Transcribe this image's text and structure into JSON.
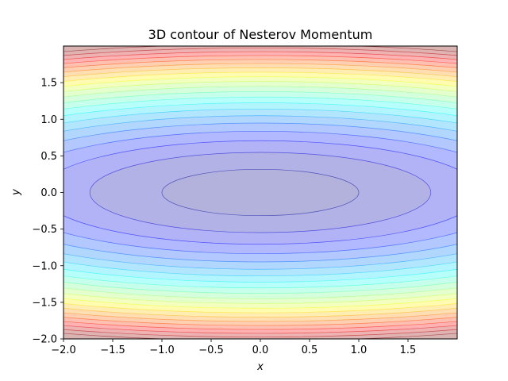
{
  "chart_data": {
    "type": "contour",
    "title": "3D contour of Nesterov Momentum",
    "xlabel": "x",
    "ylabel": "y",
    "xlim": [
      -2.0,
      2.0
    ],
    "ylim": [
      -2.0,
      2.0
    ],
    "x_ticks": [
      -2.0,
      -1.5,
      -1.0,
      -0.5,
      0.0,
      0.5,
      1.0,
      1.5
    ],
    "y_ticks": [
      -2.0,
      -1.5,
      -1.0,
      -0.5,
      0.0,
      0.5,
      1.0,
      1.5
    ],
    "x_tick_labels": [
      "−2.0",
      "−1.5",
      "−1.0",
      "−0.5",
      "0.0",
      "0.5",
      "1.0",
      "1.5"
    ],
    "y_tick_labels": [
      "−2.0",
      "−1.5",
      "−1.0",
      "−0.5",
      "0.0",
      "0.5",
      "1.0",
      "1.5"
    ],
    "function": "f(x, y) = x^2 / 10 + y^2 (approx.)",
    "y_scale_factor": 0.1,
    "levels": [
      0,
      0.01,
      0.03,
      0.05,
      0.07,
      0.09,
      0.11,
      0.13,
      0.15,
      0.17,
      0.19,
      0.21,
      0.23,
      0.25,
      0.27,
      0.29,
      0.31,
      0.33,
      0.35,
      0.37,
      0.39,
      0.41
    ],
    "colormap": "jet",
    "alpha": 0.3,
    "colors": {
      "axes_edge": "#000000",
      "contour_line": "#4040c8",
      "background": "#ffffff"
    }
  }
}
